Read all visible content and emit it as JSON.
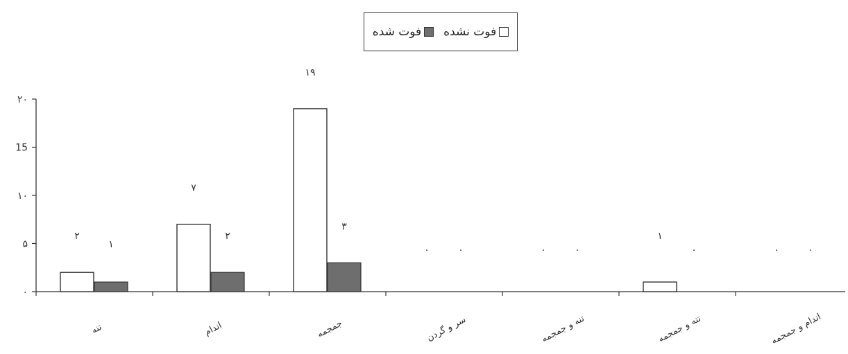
{
  "chart_data": {
    "type": "bar",
    "categories": [
      "تنه",
      "اندام",
      "جمجمه",
      "سر و گردن",
      "تنه و جمجمه",
      "تنه و جمجمه",
      "اندام و جمجمه"
    ],
    "series": [
      {
        "name": "فوت نشده",
        "values": [
          2,
          7,
          19,
          0,
          0,
          1,
          0
        ],
        "value_labels": [
          "۲",
          "۷",
          "۱۹",
          "۰",
          "۰",
          "۱",
          "۰"
        ],
        "color": "#ffffff"
      },
      {
        "name": "فوت شده",
        "values": [
          1,
          2,
          3,
          0,
          0,
          0,
          0
        ],
        "value_labels": [
          "۱",
          "۲",
          "۳",
          "۰",
          "۰",
          "۰",
          "۰"
        ],
        "color": "#6e6e6e"
      }
    ],
    "ylim": [
      0,
      20
    ],
    "yticks": [
      0,
      5,
      10,
      15,
      20
    ],
    "ytick_labels": [
      "۰",
      "۵",
      "۱۰",
      "15",
      "۲۰"
    ],
    "xlabel": "",
    "ylabel": "",
    "legend_position": "top-center",
    "grid": false
  }
}
